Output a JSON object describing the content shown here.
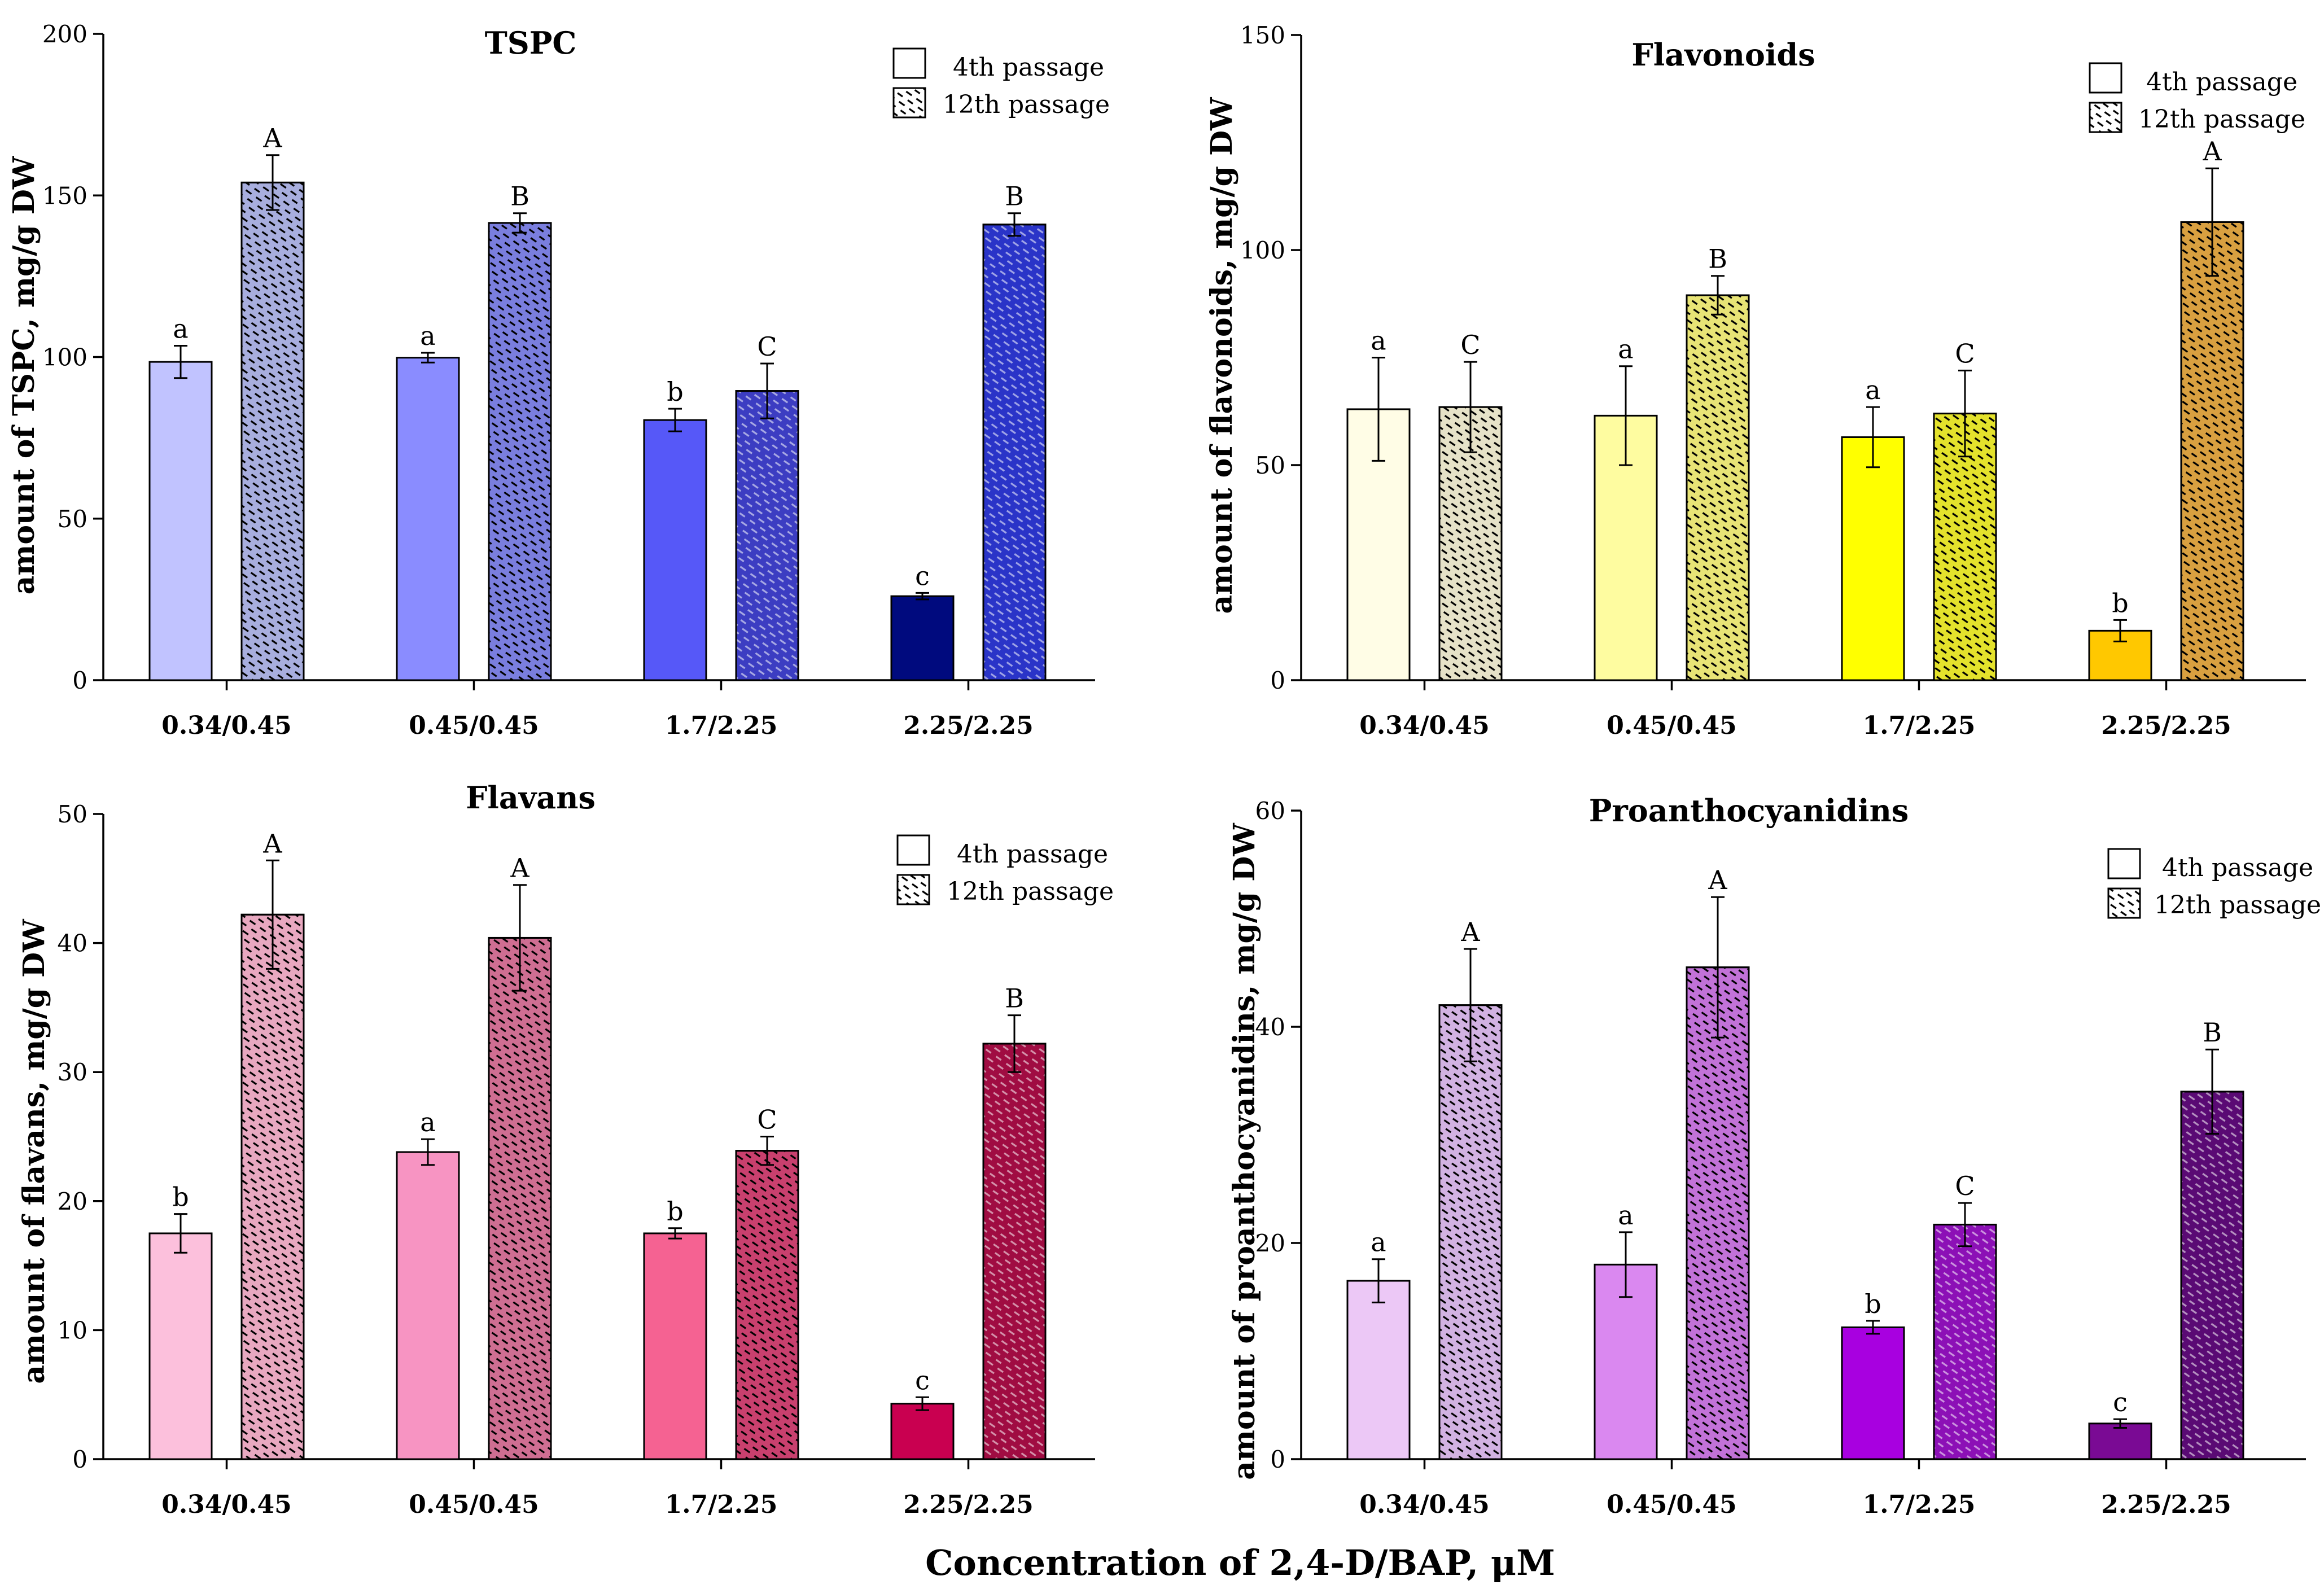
{
  "figure": {
    "xlabel": "Concentration of 2,4-D/BAP, μM",
    "legend": [
      "4th passage",
      "12th passage"
    ]
  },
  "chart_data": [
    {
      "type": "bar",
      "title": "TSPC",
      "ylabel": "amount of TSPC, mg/g DW",
      "ylim": [
        0,
        200
      ],
      "yticks": [
        0,
        50,
        100,
        150,
        200
      ],
      "categories": [
        "0.34/0.45",
        "0.45/0.45",
        "1.7/2.25",
        "2.25/2.25"
      ],
      "series": [
        {
          "name": "4th passage",
          "values": [
            98.5,
            99.8,
            80.5,
            26
          ],
          "errors": [
            5,
            1.5,
            3.5,
            1
          ],
          "letters": [
            "a",
            "a",
            "b",
            "c"
          ],
          "colors": [
            "#c1c3ff",
            "#8a8cff",
            "#5658f8",
            "#000a7e"
          ]
        },
        {
          "name": "12th passage",
          "values": [
            154,
            141.5,
            89.5,
            141
          ],
          "errors": [
            8.5,
            3,
            8.5,
            3.5
          ],
          "letters": [
            "A",
            "B",
            "C",
            "B"
          ],
          "colors": [
            "#a8aede",
            "#7a7ede",
            "#3c3dc2",
            "#2a34c8"
          ]
        }
      ]
    },
    {
      "type": "bar",
      "title": "Flavonoids",
      "ylabel": "amount of flavonoids, mg/g DW",
      "ylim": [
        0,
        150
      ],
      "yticks": [
        0,
        50,
        100,
        150
      ],
      "categories": [
        "0.34/0.45",
        "0.45/0.45",
        "1.7/2.25",
        "2.25/2.25"
      ],
      "series": [
        {
          "name": "4th passage",
          "values": [
            63,
            61.5,
            56.5,
            11.5
          ],
          "errors": [
            12,
            11.5,
            7,
            2.5
          ],
          "letters": [
            "a",
            "a",
            "a",
            "b"
          ],
          "colors": [
            "#fffde6",
            "#fefca0",
            "#ffff00",
            "#ffc800"
          ]
        },
        {
          "name": "12th passage",
          "values": [
            63.5,
            89.5,
            62,
            106.5
          ],
          "errors": [
            10.5,
            4.5,
            10,
            12.5
          ],
          "letters": [
            "C",
            "B",
            "C",
            "A"
          ],
          "colors": [
            "#e6e2c8",
            "#e8e476",
            "#e4e22c",
            "#d9a040"
          ]
        }
      ]
    },
    {
      "type": "bar",
      "title": "Flavans",
      "ylabel": "amount of flavans, mg/g DW",
      "ylim": [
        0,
        50
      ],
      "yticks": [
        0,
        10,
        20,
        30,
        40,
        50
      ],
      "categories": [
        "0.34/0.45",
        "0.45/0.45",
        "1.7/2.25",
        "2.25/2.25"
      ],
      "series": [
        {
          "name": "4th passage",
          "values": [
            17.5,
            23.8,
            17.5,
            4.3
          ],
          "errors": [
            1.5,
            1,
            0.4,
            0.5
          ],
          "letters": [
            "b",
            "a",
            "b",
            "c"
          ],
          "colors": [
            "#fcc0dc",
            "#f794c2",
            "#f56292",
            "#c90050"
          ]
        },
        {
          "name": "12th passage",
          "values": [
            42.2,
            40.4,
            23.9,
            32.2
          ],
          "errors": [
            4.2,
            4.1,
            1.1,
            2.2
          ],
          "letters": [
            "A",
            "A",
            "C",
            "B"
          ],
          "colors": [
            "#e8a8c0",
            "#cf6e92",
            "#c9406e",
            "#a00c42"
          ]
        }
      ]
    },
    {
      "type": "bar",
      "title": "Proanthocyanidins",
      "ylabel": "amount of proanthocyanidins, mg/g DW",
      "ylim": [
        0,
        60
      ],
      "yticks": [
        0,
        20,
        40,
        60
      ],
      "categories": [
        "0.34/0.45",
        "0.45/0.45",
        "1.7/2.25",
        "2.25/2.25"
      ],
      "series": [
        {
          "name": "4th passage",
          "values": [
            16.5,
            18,
            12.2,
            3.3
          ],
          "errors": [
            2,
            3,
            0.6,
            0.4
          ],
          "letters": [
            "a",
            "a",
            "b",
            "c"
          ],
          "colors": [
            "#ecc8f6",
            "#da88f0",
            "#a800e0",
            "#7a0a94"
          ]
        },
        {
          "name": "12th passage",
          "values": [
            42,
            45.5,
            21.7,
            34
          ],
          "errors": [
            5.2,
            6.5,
            2,
            3.9
          ],
          "letters": [
            "A",
            "A",
            "C",
            "B"
          ],
          "colors": [
            "#d2b2e2",
            "#c272d8",
            "#8c10b6",
            "#5a0a74"
          ]
        }
      ]
    }
  ]
}
